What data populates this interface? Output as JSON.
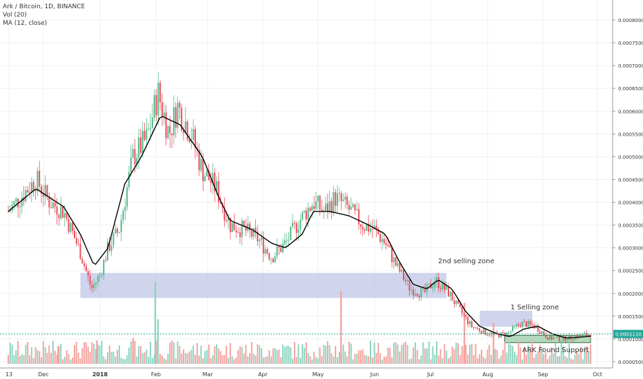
{
  "legend": {
    "symbol": "Ark / Bitcoin, 1D, BINANCE",
    "volume": "Vol (20)",
    "ma": "MA (12, close)"
  },
  "chart_data": {
    "type": "candlestick",
    "symbol": "Ark / Bitcoin",
    "interval": "1D",
    "exchange": "BINANCE",
    "ylim": [
      4e-05,
      0.00082
    ],
    "y_ticks": [
      "0.0000500",
      "0.0001000",
      "0.0001500",
      "0.0002000",
      "0.0002500",
      "0.0003000",
      "0.0003500",
      "0.0004000",
      "0.0004500",
      "0.0005000",
      "0.0005500",
      "0.0006000",
      "0.0006500",
      "0.0007000",
      "0.0007500",
      "0.0008000"
    ],
    "x_ticks": [
      "13",
      "Dec",
      "2018",
      "Feb",
      "Mar",
      "Apr",
      "May",
      "Jun",
      "Jul",
      "Aug",
      "Sep",
      "Oct"
    ],
    "last_price_label": "0.0001110",
    "last_price": 0.000111,
    "price_path": [
      {
        "x": 0.0,
        "v": 0.00038
      },
      {
        "x": 1.0,
        "v": 0.00045
      },
      {
        "x": 1.5,
        "v": 0.0004
      },
      {
        "x": 2.0,
        "v": 0.00038
      },
      {
        "x": 2.6,
        "v": 0.00029
      },
      {
        "x": 3.0,
        "v": 0.00021
      },
      {
        "x": 3.3,
        "v": 0.00024
      },
      {
        "x": 3.6,
        "v": 0.0003
      },
      {
        "x": 4.0,
        "v": 0.00034
      },
      {
        "x": 4.5,
        "v": 0.0005
      },
      {
        "x": 5.0,
        "v": 0.00054
      },
      {
        "x": 5.4,
        "v": 0.00064
      },
      {
        "x": 5.8,
        "v": 0.00055
      },
      {
        "x": 6.1,
        "v": 0.00061
      },
      {
        "x": 6.6,
        "v": 0.00055
      },
      {
        "x": 7.0,
        "v": 0.00047
      },
      {
        "x": 7.5,
        "v": 0.00043
      },
      {
        "x": 8.0,
        "v": 0.00035
      },
      {
        "x": 8.5,
        "v": 0.00034
      },
      {
        "x": 9.0,
        "v": 0.00032
      },
      {
        "x": 9.5,
        "v": 0.00028
      },
      {
        "x": 10.0,
        "v": 0.00031
      },
      {
        "x": 10.5,
        "v": 0.00036
      },
      {
        "x": 11.0,
        "v": 0.0004
      },
      {
        "x": 11.4,
        "v": 0.00038
      },
      {
        "x": 11.8,
        "v": 0.00041
      },
      {
        "x": 12.2,
        "v": 0.00039
      },
      {
        "x": 12.8,
        "v": 0.00035
      },
      {
        "x": 13.2,
        "v": 0.00034
      },
      {
        "x": 13.6,
        "v": 0.00031
      },
      {
        "x": 14.0,
        "v": 0.00026
      },
      {
        "x": 14.5,
        "v": 0.00021
      },
      {
        "x": 15.0,
        "v": 0.0002
      },
      {
        "x": 15.4,
        "v": 0.00023
      },
      {
        "x": 15.9,
        "v": 0.0002
      },
      {
        "x": 16.2,
        "v": 0.00017
      },
      {
        "x": 16.7,
        "v": 0.000128
      },
      {
        "x": 17.2,
        "v": 0.000115
      },
      {
        "x": 17.6,
        "v": 0.000108
      },
      {
        "x": 18.0,
        "v": 0.000112
      },
      {
        "x": 18.5,
        "v": 0.000135
      },
      {
        "x": 19.0,
        "v": 0.000128
      },
      {
        "x": 19.5,
        "v": 0.000102
      },
      {
        "x": 20.0,
        "v": 0.0001
      },
      {
        "x": 20.5,
        "v": 0.000106
      },
      {
        "x": 21.0,
        "v": 0.000111
      }
    ],
    "ma_path": [
      {
        "x": 0.0,
        "v": 0.00038
      },
      {
        "x": 1.0,
        "v": 0.00043
      },
      {
        "x": 2.0,
        "v": 0.00039
      },
      {
        "x": 2.6,
        "v": 0.00033
      },
      {
        "x": 3.1,
        "v": 0.00026
      },
      {
        "x": 3.6,
        "v": 0.0003
      },
      {
        "x": 4.2,
        "v": 0.00044
      },
      {
        "x": 4.8,
        "v": 0.0005
      },
      {
        "x": 5.5,
        "v": 0.00059
      },
      {
        "x": 6.2,
        "v": 0.00057
      },
      {
        "x": 7.0,
        "v": 0.0005
      },
      {
        "x": 7.6,
        "v": 0.00041
      },
      {
        "x": 8.0,
        "v": 0.00036
      },
      {
        "x": 8.8,
        "v": 0.00034
      },
      {
        "x": 9.5,
        "v": 0.00031
      },
      {
        "x": 10.0,
        "v": 0.0003
      },
      {
        "x": 10.6,
        "v": 0.00033
      },
      {
        "x": 11.0,
        "v": 0.00038
      },
      {
        "x": 11.6,
        "v": 0.00038
      },
      {
        "x": 12.3,
        "v": 0.00037
      },
      {
        "x": 13.0,
        "v": 0.00035
      },
      {
        "x": 13.6,
        "v": 0.00033
      },
      {
        "x": 14.1,
        "v": 0.00027
      },
      {
        "x": 14.6,
        "v": 0.00022
      },
      {
        "x": 15.1,
        "v": 0.00021
      },
      {
        "x": 15.5,
        "v": 0.00023
      },
      {
        "x": 16.0,
        "v": 0.00021
      },
      {
        "x": 16.5,
        "v": 0.00016
      },
      {
        "x": 17.0,
        "v": 0.000128
      },
      {
        "x": 17.6,
        "v": 0.000112
      },
      {
        "x": 18.1,
        "v": 0.000105
      },
      {
        "x": 18.6,
        "v": 0.000122
      },
      {
        "x": 19.1,
        "v": 0.000128
      },
      {
        "x": 19.6,
        "v": 0.000112
      },
      {
        "x": 20.1,
        "v": 0.000102
      },
      {
        "x": 20.6,
        "v": 0.000104
      },
      {
        "x": 21.0,
        "v": 0.000106
      }
    ],
    "zones": [
      {
        "label": "2nd selling zone",
        "x0": 2.6,
        "x1": 15.8,
        "y0": 0.00019,
        "y1": 0.000245,
        "color": "#b7bfe3"
      },
      {
        "label": "1 Selling zone",
        "x0": 17.0,
        "x1": 18.9,
        "y0": 0.000127,
        "y1": 0.000162,
        "color": "#b7bfe3"
      },
      {
        "label": "ARK Found Support",
        "x0": 17.9,
        "x1": 21.0,
        "y0": 9.2e-05,
        "y1": 0.000108,
        "color": "#8fc49a"
      }
    ],
    "volume_spikes": [
      {
        "x": 5.3,
        "h": 0.7
      },
      {
        "x": 5.4,
        "h": 0.38
      },
      {
        "x": 12.0,
        "h": 0.62
      },
      {
        "x": 16.45,
        "h": 0.52
      },
      {
        "x": 17.5,
        "h": 0.35
      },
      {
        "x": 3.2,
        "h": 0.2
      },
      {
        "x": 1.8,
        "h": 0.15
      },
      {
        "x": 4.5,
        "h": 0.22
      }
    ],
    "colors": {
      "up": "#53b987",
      "down": "#eb4d5c",
      "ma": "#000000",
      "vol_up": "#8fd4c0",
      "vol_down": "#f4a3a0",
      "last": "#26a69a"
    },
    "grid": true
  }
}
